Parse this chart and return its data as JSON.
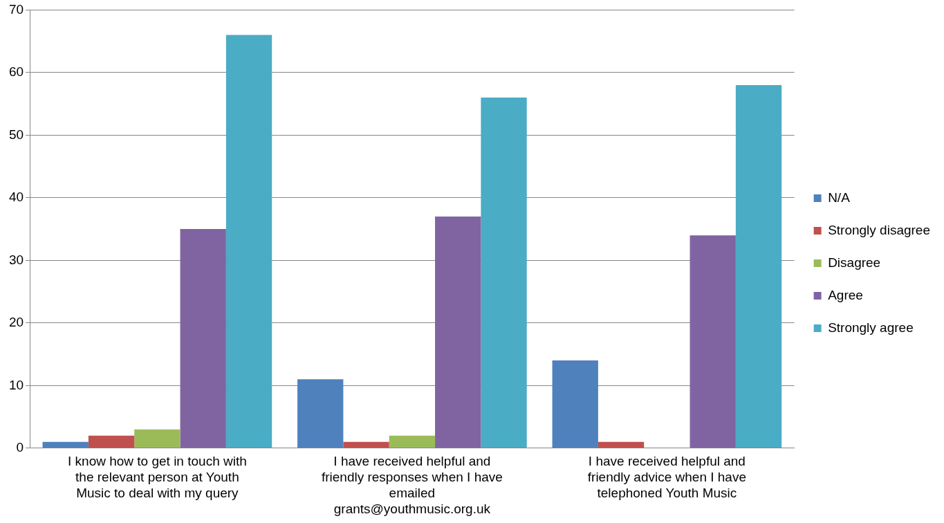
{
  "chart_data": {
    "type": "bar",
    "categories": [
      "I know how to get in touch with the relevant person at Youth Music to deal with my query",
      "I have received helpful and friendly responses when I have emailed grants@youthmusic.org.uk",
      "I have received helpful and friendly advice when I have telephoned Youth Music"
    ],
    "series": [
      {
        "name": "N/A",
        "color": "#4f81bd",
        "values": [
          1,
          11,
          14
        ]
      },
      {
        "name": "Strongly disagree",
        "color": "#c0504d",
        "values": [
          2,
          1,
          1
        ]
      },
      {
        "name": "Disagree",
        "color": "#9bbb59",
        "values": [
          3,
          2,
          0
        ]
      },
      {
        "name": "Agree",
        "color": "#8064a2",
        "values": [
          35,
          37,
          34
        ]
      },
      {
        "name": "Strongly agree",
        "color": "#4bacc6",
        "values": [
          66,
          56,
          58
        ]
      }
    ],
    "ylim": [
      0,
      70
    ],
    "yticks": [
      0,
      10,
      20,
      30,
      40,
      50,
      60,
      70
    ],
    "grid": "y",
    "legend": "right"
  }
}
